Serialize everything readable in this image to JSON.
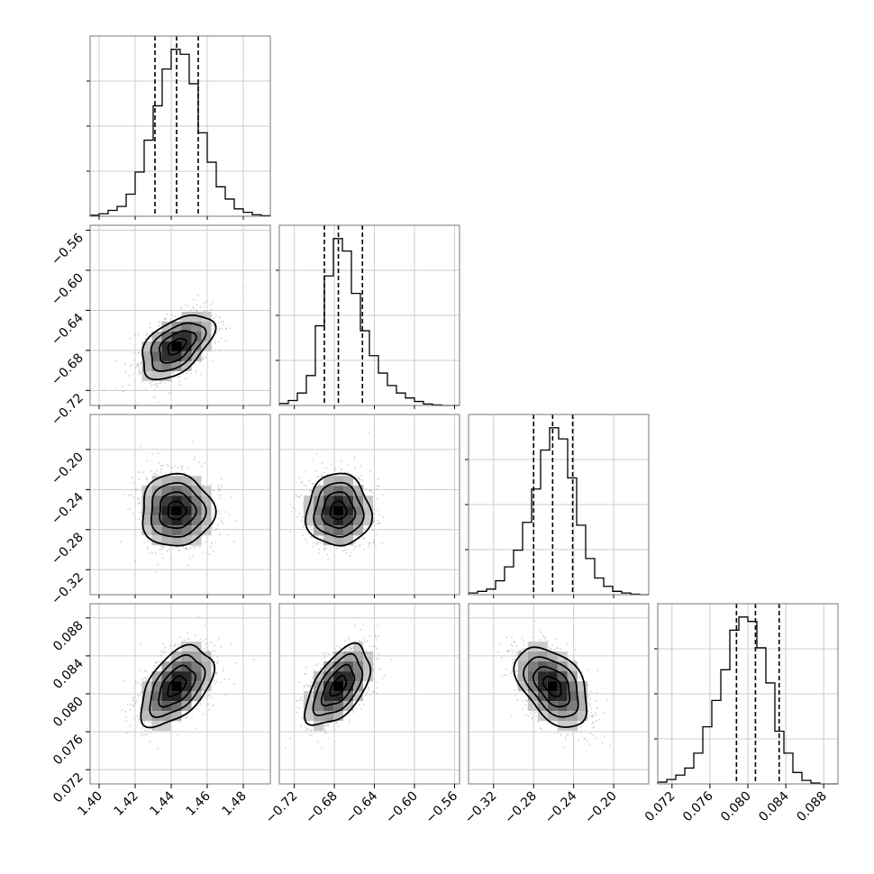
{
  "chart_data": {
    "type": "corner",
    "parameters": [
      {
        "range": [
          1.395,
          1.495
        ],
        "ticks": [
          1.4,
          1.42,
          1.44,
          1.46,
          1.48
        ],
        "tick_labels": [
          "1.40",
          "1.42",
          "1.44",
          "1.46",
          "1.48"
        ],
        "quantiles": [
          1.431,
          1.443,
          1.455
        ],
        "histogram": [
          0.2,
          0.5,
          1.2,
          2.0,
          4.5,
          9.0,
          15.5,
          22.5,
          30.0,
          34.0,
          33.0,
          27.0,
          17.0,
          11.0,
          6.0,
          3.5,
          1.5,
          0.8,
          0.3,
          0.1
        ]
      },
      {
        "range": [
          -0.735,
          -0.555
        ],
        "ticks": [
          -0.72,
          -0.68,
          -0.64,
          -0.6,
          -0.56
        ],
        "tick_labels": [
          "−0.72",
          "−0.68",
          "−0.64",
          "−0.60",
          "−0.56"
        ],
        "quantiles": [
          -0.69,
          -0.676,
          -0.652
        ],
        "histogram": [
          0.4,
          1.0,
          2.5,
          6.0,
          16.0,
          26.0,
          33.5,
          31.0,
          22.5,
          15.0,
          10.0,
          6.5,
          4.0,
          2.5,
          1.5,
          0.8,
          0.3,
          0.1,
          0,
          0
        ]
      },
      {
        "range": [
          -0.345,
          -0.165
        ],
        "ticks": [
          -0.32,
          -0.28,
          -0.24,
          -0.2
        ],
        "tick_labels": [
          "−0.32",
          "−0.28",
          "−0.24",
          "−0.20"
        ],
        "quantiles": [
          -0.28,
          -0.261,
          -0.241
        ],
        "histogram": [
          0.3,
          0.6,
          1.0,
          2.5,
          5.0,
          8.0,
          13.0,
          19.0,
          26.0,
          30.0,
          28.0,
          21.0,
          12.5,
          6.5,
          3.0,
          1.5,
          0.6,
          0.3,
          0.1,
          0
        ]
      },
      {
        "range": [
          0.0705,
          0.0895
        ],
        "ticks": [
          0.072,
          0.076,
          0.08,
          0.084,
          0.088
        ],
        "tick_labels": [
          "0.072",
          "0.076",
          "0.080",
          "0.084",
          "0.088"
        ],
        "quantiles": [
          0.0788,
          0.0808,
          0.0833
        ],
        "histogram": [
          0.2,
          0.5,
          1.0,
          1.8,
          3.5,
          6.5,
          9.5,
          13.0,
          17.5,
          19.0,
          18.5,
          15.5,
          11.5,
          6.0,
          3.5,
          1.3,
          0.4,
          0.1,
          0,
          0
        ]
      }
    ],
    "correlations": [
      [
        1,
        0.5,
        0,
        0.5
      ],
      [
        0.5,
        1,
        0,
        0.55
      ],
      [
        0,
        0,
        1,
        -0.45
      ],
      [
        0.5,
        0.55,
        -0.45,
        1
      ]
    ],
    "sample_sd": [
      0.01,
      0.016,
      0.018,
      0.0021
    ],
    "grid": true
  }
}
